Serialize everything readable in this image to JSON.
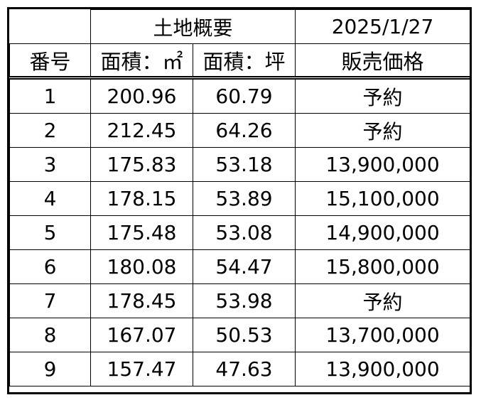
{
  "header": {
    "group_title": "土地概要",
    "date": "2025/1/27",
    "col_number": "番号",
    "col_area_m2": "面積：㎡",
    "col_area_tsubo": "面積：坪",
    "col_price": "販売価格"
  },
  "rows": [
    {
      "no": "1",
      "area_m2": "200.96",
      "area_tsubo": "60.79",
      "price": "予約"
    },
    {
      "no": "2",
      "area_m2": "212.45",
      "area_tsubo": "64.26",
      "price": "予約"
    },
    {
      "no": "3",
      "area_m2": "175.83",
      "area_tsubo": "53.18",
      "price": "13,900,000"
    },
    {
      "no": "4",
      "area_m2": "178.15",
      "area_tsubo": "53.89",
      "price": "15,100,000"
    },
    {
      "no": "5",
      "area_m2": "175.48",
      "area_tsubo": "53.08",
      "price": "14,900,000"
    },
    {
      "no": "6",
      "area_m2": "180.08",
      "area_tsubo": "54.47",
      "price": "15,800,000"
    },
    {
      "no": "7",
      "area_m2": "178.45",
      "area_tsubo": "53.98",
      "price": "予約"
    },
    {
      "no": "8",
      "area_m2": "167.07",
      "area_tsubo": "50.53",
      "price": "13,700,000"
    },
    {
      "no": "9",
      "area_m2": "157.47",
      "area_tsubo": "47.63",
      "price": "13,900,000"
    }
  ]
}
